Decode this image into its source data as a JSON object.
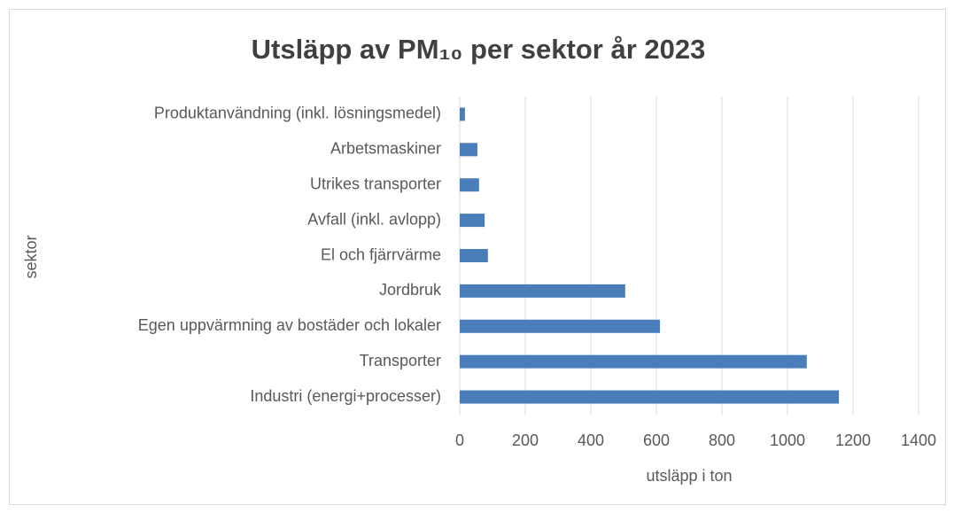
{
  "chart_data": {
    "type": "barh",
    "title": "Utsläpp av PM₁₀ per sektor år 2023",
    "x_label": "utsläpp i ton",
    "y_label": "sektor",
    "categories": [
      "Industri (energi+processer)",
      "Transporter",
      "Egen uppvärmning av bostäder och lokaler",
      "Jordbruk",
      "El och fjärrvärme",
      "Avfall (inkl. avlopp)",
      "Utrikes transporter",
      "Arbetsmaskiner",
      "Produktanvändning (inkl. lösningsmedel)"
    ],
    "values": [
      1157,
      1059,
      611,
      505,
      86,
      76,
      59,
      54,
      16
    ],
    "color": "#4a7ebb",
    "xlim": [
      0,
      1400
    ],
    "xticks": [
      0,
      200,
      400,
      600,
      800,
      1000,
      1200,
      1400
    ],
    "grid": true
  }
}
